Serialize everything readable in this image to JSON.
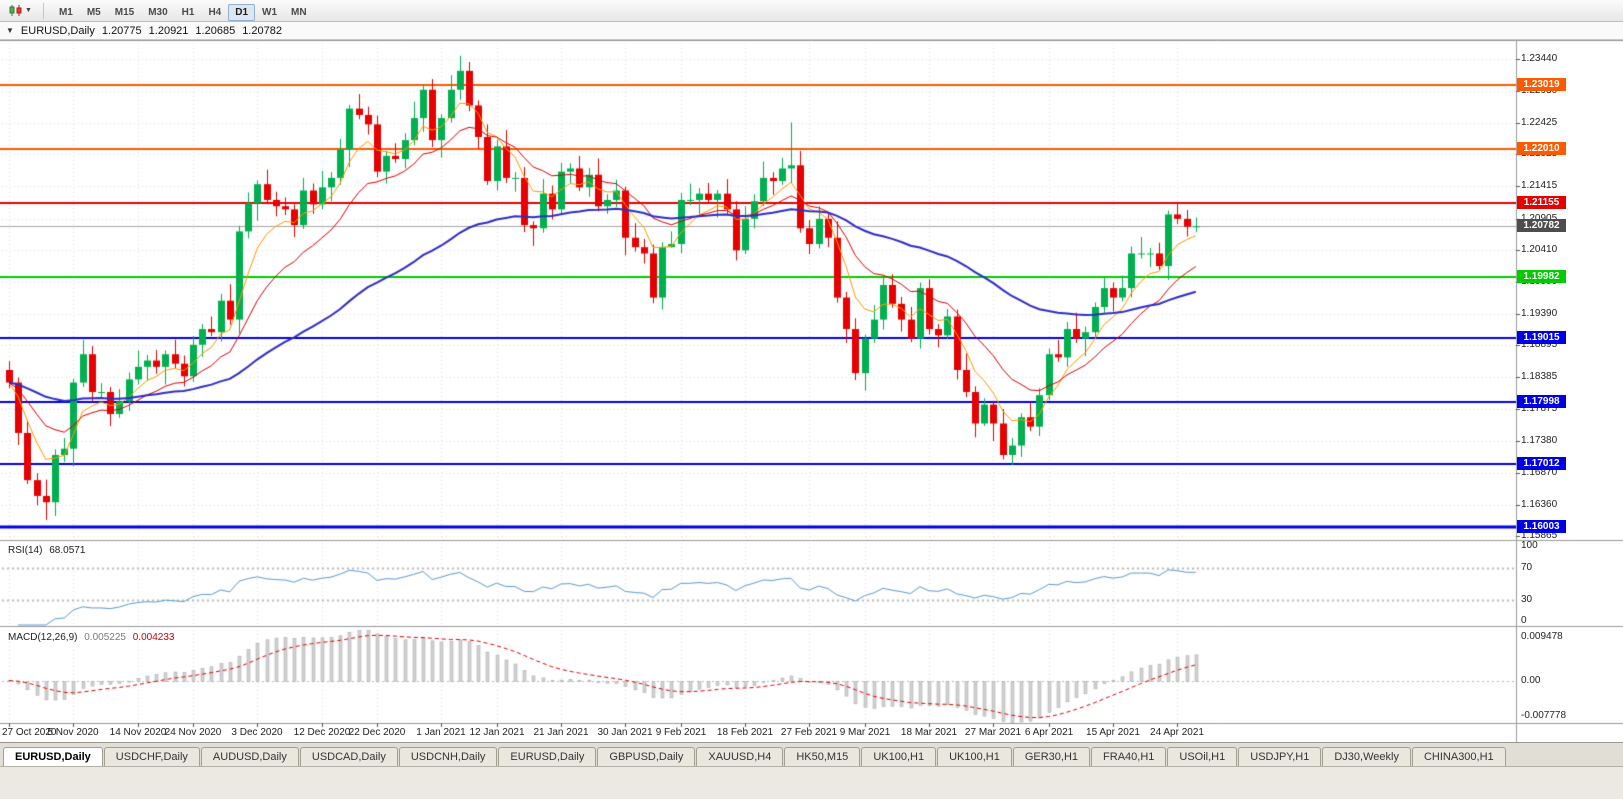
{
  "toolbar": {
    "chart_type_icon": "candlestick-chart-icon",
    "timeframes": [
      "M1",
      "M5",
      "M15",
      "M30",
      "H1",
      "H4",
      "D1",
      "W1",
      "MN"
    ],
    "active_timeframe": "D1"
  },
  "chart_window": {
    "symbol_period": "EURUSD,Daily",
    "open": "1.20775",
    "high": "1.20921",
    "low": "1.20685",
    "close": "1.20782"
  },
  "indicators": {
    "rsi": {
      "name": "RSI(14)",
      "value": "68.0571",
      "axis_labels": [
        "100",
        "70",
        "30",
        "0"
      ],
      "levels": [
        70,
        30
      ],
      "line_color": "#5b9bd5"
    },
    "macd": {
      "name": "MACD(12,26,9)",
      "value_main": "0.005225",
      "value_signal": "0.004233",
      "axis_top": "0.009478",
      "axis_zero": "0.00",
      "axis_bottom": "-0.007778",
      "hist_color": "#d2d2d2",
      "hist_border": "#a6a6a6",
      "signal_color": "#e60000"
    }
  },
  "tabs": {
    "items": [
      "EURUSD,Daily",
      "USDCHF,Daily",
      "AUDUSD,Daily",
      "USDCAD,Daily",
      "USDCNH,Daily",
      "EURUSD,Daily",
      "GBPUSD,Daily",
      "XAUUSD,H4",
      "HK50,M15",
      "UK100,H1",
      "UK100,H1",
      "GER30,H1",
      "FRA40,H1",
      "USOil,H1",
      "USDJPY,H1",
      "DJ30,Weekly",
      "CHINA300,H1"
    ],
    "active_index": 0
  },
  "chart_data": {
    "type": "candlestick",
    "symbol": "EURUSD",
    "period": "Daily",
    "price_top": 1.2374,
    "price_bottom": 1.158,
    "price_ticks": [
      "1.23440",
      "1.22930",
      "1.22425",
      "1.21925",
      "1.21415",
      "1.20905",
      "1.20410",
      "1.19900",
      "1.19390",
      "1.18895",
      "1.18385",
      "1.17875",
      "1.17380",
      "1.16870",
      "1.16360",
      "1.15865"
    ],
    "current_price": {
      "price": 1.20782,
      "label": "1.20782",
      "badge_color": "#4d4d4d",
      "line_color": "#a8a8a8"
    },
    "hlines": [
      {
        "price": 1.23019,
        "label": "1.23019",
        "color": "#ff5a00",
        "width": 2
      },
      {
        "price": 1.2201,
        "label": "1.22010",
        "color": "#ff5a00",
        "width": 2
      },
      {
        "price": 1.21155,
        "label": "1.21155",
        "color": "#e60000",
        "width": 2
      },
      {
        "price": 1.19982,
        "label": "1.19982",
        "color": "#00cc00",
        "width": 2
      },
      {
        "price": 1.19015,
        "label": "1.19015",
        "color": "#0000e6",
        "width": 2
      },
      {
        "price": 1.17998,
        "label": "1.17998",
        "color": "#0000e6",
        "width": 2
      },
      {
        "price": 1.17012,
        "label": "1.17012",
        "color": "#0000e6",
        "width": 2
      },
      {
        "price": 1.16003,
        "label": "1.16003",
        "color": "#0000e6",
        "width": 3
      }
    ],
    "moving_averages": [
      {
        "type": "ema",
        "period": 6,
        "color": "#ff9900",
        "width": 1
      },
      {
        "type": "ema",
        "period": 14,
        "color": "#dd0000",
        "width": 1
      },
      {
        "type": "ema",
        "period": 50,
        "color": "#2d2dc8",
        "width": 2
      }
    ],
    "rsi_range": [
      0,
      100
    ],
    "macd_max": 0.009478,
    "macd_min": -0.007778,
    "colors": {
      "bull": "#00b050",
      "bear": "#e60000",
      "grid": "#e3e3e3",
      "panel_border": "#9a9a9a",
      "levels": "#bcbcbc"
    },
    "time_labels": [
      {
        "text": "27 Oct 2020",
        "i": 0
      },
      {
        "text": "5 Nov 2020",
        "i": 7
      },
      {
        "text": "14 Nov 2020",
        "i": 14
      },
      {
        "text": "24 Nov 2020",
        "i": 20
      },
      {
        "text": "3 Dec 2020",
        "i": 27
      },
      {
        "text": "12 Dec 2020",
        "i": 34
      },
      {
        "text": "22 Dec 2020",
        "i": 40
      },
      {
        "text": "1 Jan 2021",
        "i": 47
      },
      {
        "text": "12 Jan 2021",
        "i": 53
      },
      {
        "text": "21 Jan 2021",
        "i": 60
      },
      {
        "text": "30 Jan 2021",
        "i": 67
      },
      {
        "text": "9 Feb 2021",
        "i": 73
      },
      {
        "text": "18 Feb 2021",
        "i": 80
      },
      {
        "text": "27 Feb 2021",
        "i": 87
      },
      {
        "text": "9 Mar 2021",
        "i": 93
      },
      {
        "text": "18 Mar 2021",
        "i": 100
      },
      {
        "text": "27 Mar 2021",
        "i": 107
      },
      {
        "text": "6 Apr 2021",
        "i": 113
      },
      {
        "text": "15 Apr 2021",
        "i": 120
      },
      {
        "text": "24 Apr 2021",
        "i": 127
      }
    ],
    "candles": [
      [
        1.185,
        1.1864,
        1.1821,
        1.183
      ],
      [
        1.183,
        1.1838,
        1.1731,
        1.175
      ],
      [
        1.175,
        1.177,
        1.1669,
        1.1675
      ],
      [
        1.1675,
        1.1686,
        1.1635,
        1.165
      ],
      [
        1.165,
        1.1676,
        1.1612,
        1.164
      ],
      [
        1.164,
        1.1724,
        1.1618,
        1.1715
      ],
      [
        1.1715,
        1.1742,
        1.1704,
        1.1725
      ],
      [
        1.1725,
        1.1836,
        1.1697,
        1.183
      ],
      [
        1.183,
        1.1898,
        1.1823,
        1.1875
      ],
      [
        1.1875,
        1.1888,
        1.1799,
        1.1815
      ],
      [
        1.1815,
        1.1829,
        1.1806,
        1.1815
      ],
      [
        1.1815,
        1.1823,
        1.1761,
        1.178
      ],
      [
        1.178,
        1.182,
        1.1774,
        1.18
      ],
      [
        1.18,
        1.1846,
        1.1785,
        1.1835
      ],
      [
        1.1835,
        1.1881,
        1.1827,
        1.1855
      ],
      [
        1.1855,
        1.1874,
        1.1833,
        1.1865
      ],
      [
        1.1865,
        1.1882,
        1.1844,
        1.1855
      ],
      [
        1.1855,
        1.1881,
        1.1827,
        1.1875
      ],
      [
        1.1875,
        1.1898,
        1.1853,
        1.186
      ],
      [
        1.186,
        1.1873,
        1.1824,
        1.184
      ],
      [
        1.184,
        1.1904,
        1.1831,
        1.189
      ],
      [
        1.189,
        1.1923,
        1.1871,
        1.1915
      ],
      [
        1.1915,
        1.1935,
        1.1904,
        1.191
      ],
      [
        1.191,
        1.1971,
        1.1895,
        1.196
      ],
      [
        1.196,
        1.1986,
        1.1922,
        1.193
      ],
      [
        1.193,
        1.2079,
        1.1908,
        1.207
      ],
      [
        1.207,
        1.2132,
        1.2059,
        1.2115
      ],
      [
        1.2115,
        1.2151,
        1.2087,
        1.2145
      ],
      [
        1.2145,
        1.2168,
        1.2113,
        1.212
      ],
      [
        1.212,
        1.2133,
        1.2094,
        1.211
      ],
      [
        1.211,
        1.2124,
        1.2096,
        1.2105
      ],
      [
        1.2105,
        1.2113,
        1.2061,
        1.208
      ],
      [
        1.208,
        1.2155,
        1.2074,
        1.2135
      ],
      [
        1.2135,
        1.2146,
        1.2098,
        1.2113
      ],
      [
        1.2113,
        1.2166,
        1.2105,
        1.214
      ],
      [
        1.214,
        1.2164,
        1.2118,
        1.2155
      ],
      [
        1.2155,
        1.2217,
        1.2144,
        1.22
      ],
      [
        1.22,
        1.2271,
        1.2172,
        1.2265
      ],
      [
        1.2265,
        1.2288,
        1.2248,
        1.2255
      ],
      [
        1.2255,
        1.2268,
        1.2224,
        1.224
      ],
      [
        1.224,
        1.2254,
        1.2156,
        1.2165
      ],
      [
        1.2165,
        1.2198,
        1.2146,
        1.219
      ],
      [
        1.219,
        1.221,
        1.2179,
        1.2185
      ],
      [
        1.2185,
        1.2226,
        1.217,
        1.2215
      ],
      [
        1.2215,
        1.2276,
        1.2207,
        1.225
      ],
      [
        1.225,
        1.2304,
        1.2228,
        1.2295
      ],
      [
        1.2295,
        1.2312,
        1.2204,
        1.2215
      ],
      [
        1.2215,
        1.2256,
        1.2187,
        1.225
      ],
      [
        1.225,
        1.2318,
        1.2243,
        1.2295
      ],
      [
        1.2295,
        1.2349,
        1.2279,
        1.2325
      ],
      [
        1.2325,
        1.2339,
        1.2261,
        1.227
      ],
      [
        1.227,
        1.2278,
        1.2201,
        1.222
      ],
      [
        1.222,
        1.224,
        1.2144,
        1.215
      ],
      [
        1.215,
        1.2216,
        1.2135,
        1.2205
      ],
      [
        1.2205,
        1.2231,
        1.2147,
        1.2155
      ],
      [
        1.2155,
        1.2164,
        1.2133,
        1.2155
      ],
      [
        1.2155,
        1.2172,
        1.2069,
        1.208
      ],
      [
        1.208,
        1.2086,
        1.2047,
        1.2075
      ],
      [
        1.2075,
        1.2153,
        1.2068,
        1.213
      ],
      [
        1.213,
        1.2143,
        1.2089,
        1.2105
      ],
      [
        1.2105,
        1.2179,
        1.2096,
        1.2165
      ],
      [
        1.2165,
        1.2178,
        1.2146,
        1.217
      ],
      [
        1.217,
        1.219,
        1.2134,
        1.214
      ],
      [
        1.214,
        1.2171,
        1.2125,
        1.216
      ],
      [
        1.216,
        1.2186,
        1.2102,
        1.211
      ],
      [
        1.211,
        1.2129,
        1.2098,
        1.212
      ],
      [
        1.212,
        1.2152,
        1.2109,
        1.2135
      ],
      [
        1.2135,
        1.2141,
        1.2032,
        1.206
      ],
      [
        1.206,
        1.2083,
        1.2038,
        1.2045
      ],
      [
        1.2045,
        1.2058,
        1.2019,
        1.2035
      ],
      [
        1.2035,
        1.2049,
        1.1956,
        1.1965
      ],
      [
        1.1965,
        1.2053,
        1.1946,
        1.2045
      ],
      [
        1.2045,
        1.207,
        1.2044,
        1.205
      ],
      [
        1.205,
        1.2131,
        1.2035,
        1.212
      ],
      [
        1.212,
        1.2146,
        1.2112,
        1.212
      ],
      [
        1.212,
        1.2139,
        1.2098,
        1.213
      ],
      [
        1.213,
        1.2147,
        1.2114,
        1.212
      ],
      [
        1.212,
        1.2136,
        1.2092,
        1.213
      ],
      [
        1.213,
        1.2153,
        1.2098,
        1.2105
      ],
      [
        1.2105,
        1.2118,
        1.2024,
        1.204
      ],
      [
        1.204,
        1.211,
        1.2034,
        1.209
      ],
      [
        1.209,
        1.2129,
        1.2075,
        1.2118
      ],
      [
        1.2118,
        1.2181,
        1.211,
        1.2155
      ],
      [
        1.2155,
        1.2164,
        1.2128,
        1.215
      ],
      [
        1.215,
        1.2187,
        1.2144,
        1.217
      ],
      [
        1.217,
        1.2243,
        1.2147,
        1.2175
      ],
      [
        1.2175,
        1.2198,
        1.2068,
        1.2075
      ],
      [
        1.2075,
        1.2088,
        1.2034,
        1.205
      ],
      [
        1.205,
        1.211,
        1.2043,
        1.209
      ],
      [
        1.209,
        1.2101,
        1.2045,
        1.206
      ],
      [
        1.206,
        1.2086,
        1.1957,
        1.1965
      ],
      [
        1.1965,
        1.1974,
        1.1893,
        1.1915
      ],
      [
        1.1915,
        1.1932,
        1.1834,
        1.1845
      ],
      [
        1.1845,
        1.1906,
        1.1817,
        1.19
      ],
      [
        1.19,
        1.1953,
        1.1893,
        1.193
      ],
      [
        1.193,
        1.1998,
        1.1914,
        1.1985
      ],
      [
        1.1985,
        1.2002,
        1.1949,
        1.1955
      ],
      [
        1.1955,
        1.1966,
        1.1911,
        1.193
      ],
      [
        1.193,
        1.195,
        1.1894,
        1.19
      ],
      [
        1.19,
        1.1989,
        1.1884,
        1.198
      ],
      [
        1.198,
        1.1994,
        1.1906,
        1.1915
      ],
      [
        1.1915,
        1.1923,
        1.1886,
        1.1905
      ],
      [
        1.1905,
        1.1947,
        1.1899,
        1.1935
      ],
      [
        1.1935,
        1.1946,
        1.1835,
        1.185
      ],
      [
        1.185,
        1.1876,
        1.1807,
        1.1815
      ],
      [
        1.1815,
        1.1824,
        1.1743,
        1.1765
      ],
      [
        1.1765,
        1.1805,
        1.1761,
        1.1795
      ],
      [
        1.1795,
        1.1801,
        1.1737,
        1.1765
      ],
      [
        1.1765,
        1.1788,
        1.1708,
        1.1715
      ],
      [
        1.1715,
        1.1742,
        1.1699,
        1.173
      ],
      [
        1.173,
        1.1781,
        1.1712,
        1.1775
      ],
      [
        1.1775,
        1.1798,
        1.1753,
        1.176
      ],
      [
        1.176,
        1.1821,
        1.1745,
        1.181
      ],
      [
        1.181,
        1.1884,
        1.1802,
        1.1875
      ],
      [
        1.1875,
        1.1898,
        1.1863,
        1.187
      ],
      [
        1.187,
        1.1926,
        1.1855,
        1.1915
      ],
      [
        1.1915,
        1.1941,
        1.1893,
        1.19
      ],
      [
        1.19,
        1.1919,
        1.1872,
        1.191
      ],
      [
        1.191,
        1.1957,
        1.1903,
        1.195
      ],
      [
        1.195,
        1.1996,
        1.1941,
        1.198
      ],
      [
        1.198,
        1.1989,
        1.1943,
        1.1965
      ],
      [
        1.1965,
        1.2,
        1.1959,
        1.198
      ],
      [
        1.198,
        1.2046,
        1.1965,
        1.2035
      ],
      [
        1.2035,
        1.2061,
        1.2027,
        1.2035
      ],
      [
        1.2035,
        1.2044,
        1.2013,
        1.2035
      ],
      [
        1.2035,
        1.2052,
        1.2009,
        1.2015
      ],
      [
        1.2015,
        1.2103,
        1.1993,
        1.2097
      ],
      [
        1.2097,
        1.2117,
        1.2082,
        1.209
      ],
      [
        1.209,
        1.2104,
        1.2062,
        1.20775
      ],
      [
        1.20775,
        1.20921,
        1.20685,
        1.20782
      ]
    ]
  }
}
